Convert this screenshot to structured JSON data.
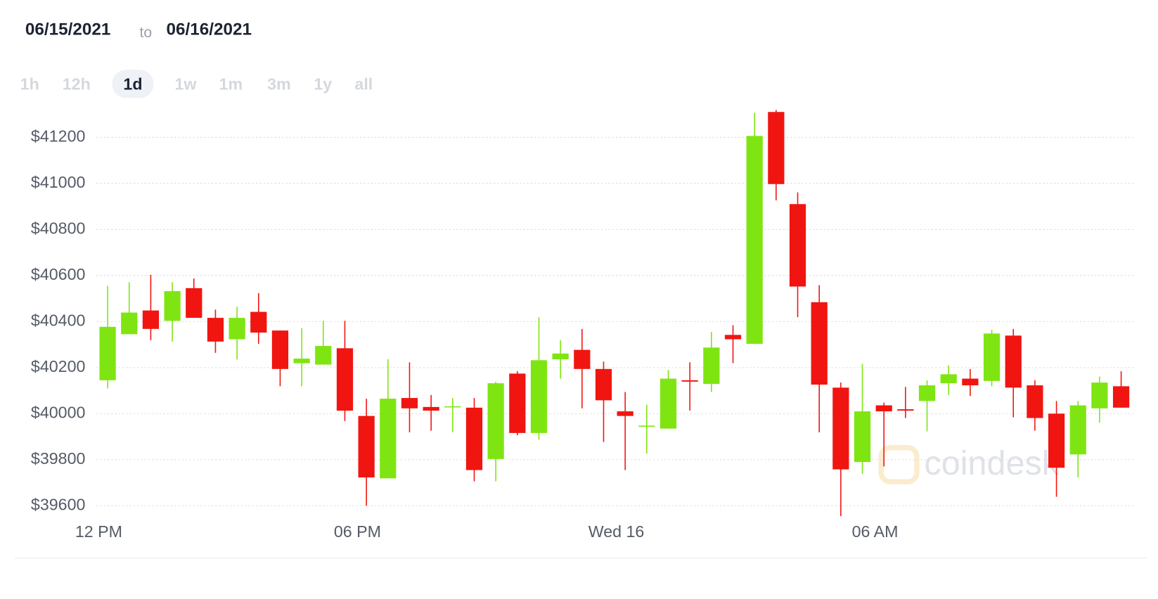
{
  "header": {
    "from": "06/15/2021",
    "to_word": "to",
    "to": "06/16/2021"
  },
  "range_buttons": [
    "1h",
    "12h",
    "1d",
    "1w",
    "1m",
    "3m",
    "1y",
    "all"
  ],
  "selected_range": "1d",
  "chart_data": {
    "type": "candlestick",
    "watermark": "coindesk",
    "categories": [
      "12 PM",
      null,
      null,
      null,
      null,
      null,
      null,
      null,
      null,
      null,
      null,
      null,
      "06 PM",
      null,
      null,
      null,
      null,
      null,
      null,
      null,
      null,
      null,
      null,
      null,
      "Wed 16",
      null,
      null,
      null,
      null,
      null,
      null,
      null,
      null,
      null,
      null,
      null,
      "06 AM",
      null,
      null,
      null,
      null,
      null,
      null,
      null,
      null,
      null,
      null,
      null
    ],
    "open": [
      40145,
      40345,
      40448,
      40403,
      40545,
      40416,
      40323,
      40442,
      40361,
      40219,
      40213,
      40284,
      39990,
      39719,
      40068,
      40029,
      40029,
      40026,
      39803,
      40174,
      39916,
      40236,
      40277,
      40194,
      40010,
      39945,
      39935,
      40145,
      40129,
      40342,
      40303,
      41310,
      40910,
      40484,
      40113,
      39790,
      40036,
      40019,
      40055,
      40132,
      40152,
      40142,
      40339,
      40123,
      40000,
      39823,
      40023,
      40119
    ],
    "high": [
      40555,
      40571,
      40603,
      40571,
      40587,
      40452,
      40464,
      40523,
      40361,
      40371,
      40403,
      40403,
      40065,
      40236,
      40223,
      40081,
      40068,
      40068,
      40139,
      40184,
      40419,
      40319,
      40368,
      40226,
      40094,
      40039,
      40190,
      40223,
      40355,
      40384,
      41306,
      41319,
      40961,
      40558,
      40135,
      40216,
      40048,
      40116,
      40145,
      40210,
      40194,
      40364,
      40368,
      40145,
      40055,
      40055,
      40161,
      40184
    ],
    "low": [
      40110,
      40345,
      40319,
      40313,
      40416,
      40264,
      40235,
      40303,
      40119,
      40119,
      40213,
      39968,
      39600,
      39719,
      39919,
      39926,
      39919,
      39706,
      39706,
      39906,
      39887,
      40152,
      40023,
      39877,
      39755,
      39826,
      39935,
      40013,
      40094,
      40219,
      40303,
      40926,
      40419,
      39919,
      39555,
      39739,
      39771,
      39981,
      39923,
      40081,
      40077,
      40119,
      39984,
      39926,
      39639,
      39723,
      39961,
      40026
    ],
    "close": [
      40377,
      40439,
      40368,
      40532,
      40416,
      40313,
      40416,
      40352,
      40194,
      40239,
      40294,
      40013,
      39723,
      40065,
      40023,
      40013,
      40032,
      39755,
      40132,
      39916,
      40232,
      40261,
      40194,
      40058,
      39990,
      39948,
      40152,
      40139,
      40287,
      40323,
      41206,
      40997,
      40552,
      40126,
      39758,
      40010,
      40010,
      40013,
      40123,
      40171,
      40123,
      40348,
      40113,
      39981,
      39765,
      40036,
      40135,
      40026
    ],
    "up_color": "#7fe512",
    "down_color": "#f01510",
    "ylim": [
      39540,
      41345
    ],
    "yticks": [
      {
        "value": 39600,
        "label": "$39600"
      },
      {
        "value": 39800,
        "label": "$39800"
      },
      {
        "value": 40000,
        "label": "$40000"
      },
      {
        "value": 40200,
        "label": "$40200"
      },
      {
        "value": 40400,
        "label": "$40400"
      },
      {
        "value": 40600,
        "label": "$40600"
      },
      {
        "value": 40800,
        "label": "$40800"
      },
      {
        "value": 41000,
        "label": "$41000"
      },
      {
        "value": 41200,
        "label": "$41200"
      }
    ],
    "grid": true
  }
}
